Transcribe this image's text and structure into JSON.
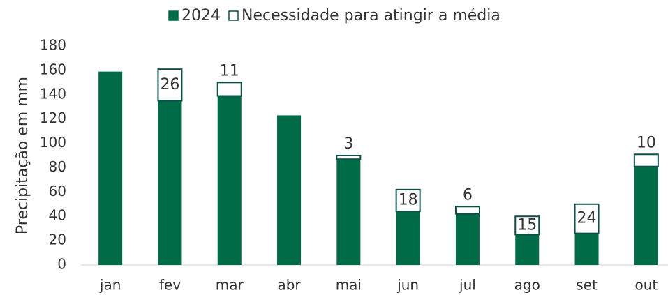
{
  "chart_data": {
    "type": "bar",
    "stacked": true,
    "categories": [
      "jan",
      "fev",
      "mar",
      "abr",
      "mai",
      "jun",
      "jul",
      "ago",
      "set",
      "out"
    ],
    "series": [
      {
        "name": "2024",
        "color": "#006b47",
        "values": [
          159,
          135,
          139,
          123,
          87,
          44,
          42,
          25,
          26,
          81
        ]
      },
      {
        "name": "Necessidade para atingir a média",
        "color": "#ffffff",
        "border": "#0f4f4a",
        "values": [
          null,
          26,
          11,
          null,
          3,
          18,
          6,
          15,
          24,
          10
        ]
      }
    ],
    "ylabel": "Precipitação em mm",
    "ylim": [
      0,
      180
    ],
    "yticks": [
      0,
      20,
      40,
      60,
      80,
      100,
      120,
      140,
      160,
      180
    ]
  }
}
